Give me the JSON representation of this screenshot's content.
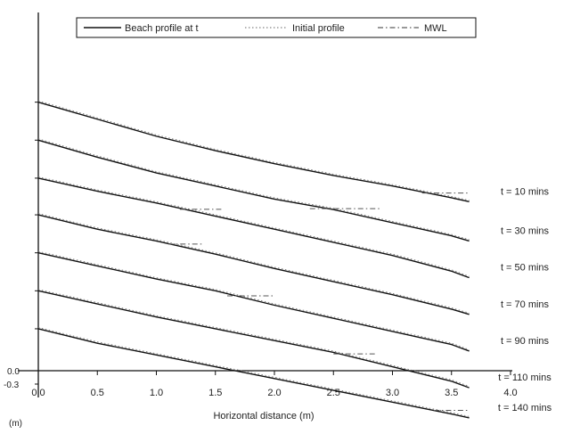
{
  "chart_data": {
    "type": "line",
    "title": "",
    "xlabel": "Horizontal distance (m)",
    "ylabel_unit": "(m)",
    "y_ticks": [
      "0.0",
      "-0.3"
    ],
    "x_ticks": [
      0.0,
      0.5,
      1.0,
      1.5,
      2.0,
      2.5,
      3.0,
      3.5,
      4.0
    ],
    "x_tick_labels": [
      "0.0",
      "0.5",
      "1.0",
      "1.5",
      "2.0",
      "2.5",
      "3.0",
      "3.5",
      "4.0"
    ],
    "xlim": [
      0.0,
      4.0
    ],
    "legend": {
      "placement": "top",
      "entries": [
        {
          "label": "Beach profile at t",
          "style": "solid"
        },
        {
          "label": "Initial profile",
          "style": "dotted"
        },
        {
          "label": "MWL",
          "style": "dashdot"
        }
      ]
    },
    "series": [
      {
        "name": "t = 10 mins",
        "x": [
          0.0,
          0.5,
          1.0,
          1.5,
          2.0,
          2.5,
          3.0,
          3.5,
          3.65
        ],
        "y": [
          2.05,
          1.92,
          1.79,
          1.68,
          1.58,
          1.49,
          1.41,
          1.32,
          1.29
        ],
        "mwl_x": [
          3.25,
          3.65
        ]
      },
      {
        "name": "t = 30 mins",
        "x": [
          0.0,
          0.5,
          1.0,
          1.5,
          2.0,
          2.5,
          3.0,
          3.5,
          3.65
        ],
        "y": [
          1.76,
          1.63,
          1.51,
          1.41,
          1.31,
          1.23,
          1.13,
          1.03,
          0.99
        ],
        "mwl_x": [
          2.3,
          2.9
        ]
      },
      {
        "name": "t = 50 mins",
        "x": [
          0.0,
          0.5,
          1.0,
          1.5,
          2.0,
          2.5,
          3.0,
          3.5,
          3.65
        ],
        "y": [
          1.47,
          1.37,
          1.28,
          1.18,
          1.08,
          0.98,
          0.88,
          0.76,
          0.71
        ],
        "mwl_x": [
          1.2,
          1.55
        ]
      },
      {
        "name": "t = 70 mins",
        "x": [
          0.0,
          0.5,
          1.0,
          1.5,
          2.0,
          2.5,
          3.0,
          3.5,
          3.65
        ],
        "y": [
          1.19,
          1.08,
          0.99,
          0.89,
          0.78,
          0.68,
          0.58,
          0.47,
          0.43
        ],
        "mwl_x": [
          1.1,
          1.4
        ]
      },
      {
        "name": "t = 90 mins",
        "x": [
          0.0,
          0.5,
          1.0,
          1.5,
          2.0,
          2.5,
          3.0,
          3.5,
          3.65
        ],
        "y": [
          0.9,
          0.8,
          0.7,
          0.61,
          0.5,
          0.4,
          0.3,
          0.2,
          0.15
        ],
        "mwl_x": [
          1.6,
          2.0
        ]
      },
      {
        "name": "t = 110 mins",
        "x": [
          0.0,
          0.5,
          1.0,
          1.5,
          2.0,
          2.5,
          3.0,
          3.5,
          3.65
        ],
        "y": [
          0.61,
          0.51,
          0.41,
          0.32,
          0.23,
          0.14,
          0.03,
          -0.08,
          -0.13
        ],
        "mwl_x": [
          2.5,
          2.85
        ]
      },
      {
        "name": "t = 140 mins",
        "x": [
          0.0,
          0.5,
          1.0,
          1.5,
          2.0,
          2.5,
          3.0,
          3.5,
          3.65
        ],
        "y": [
          0.32,
          0.21,
          0.12,
          0.03,
          -0.06,
          -0.15,
          -0.24,
          -0.33,
          -0.36
        ],
        "mwl_x": [
          3.35,
          3.65
        ]
      }
    ]
  }
}
